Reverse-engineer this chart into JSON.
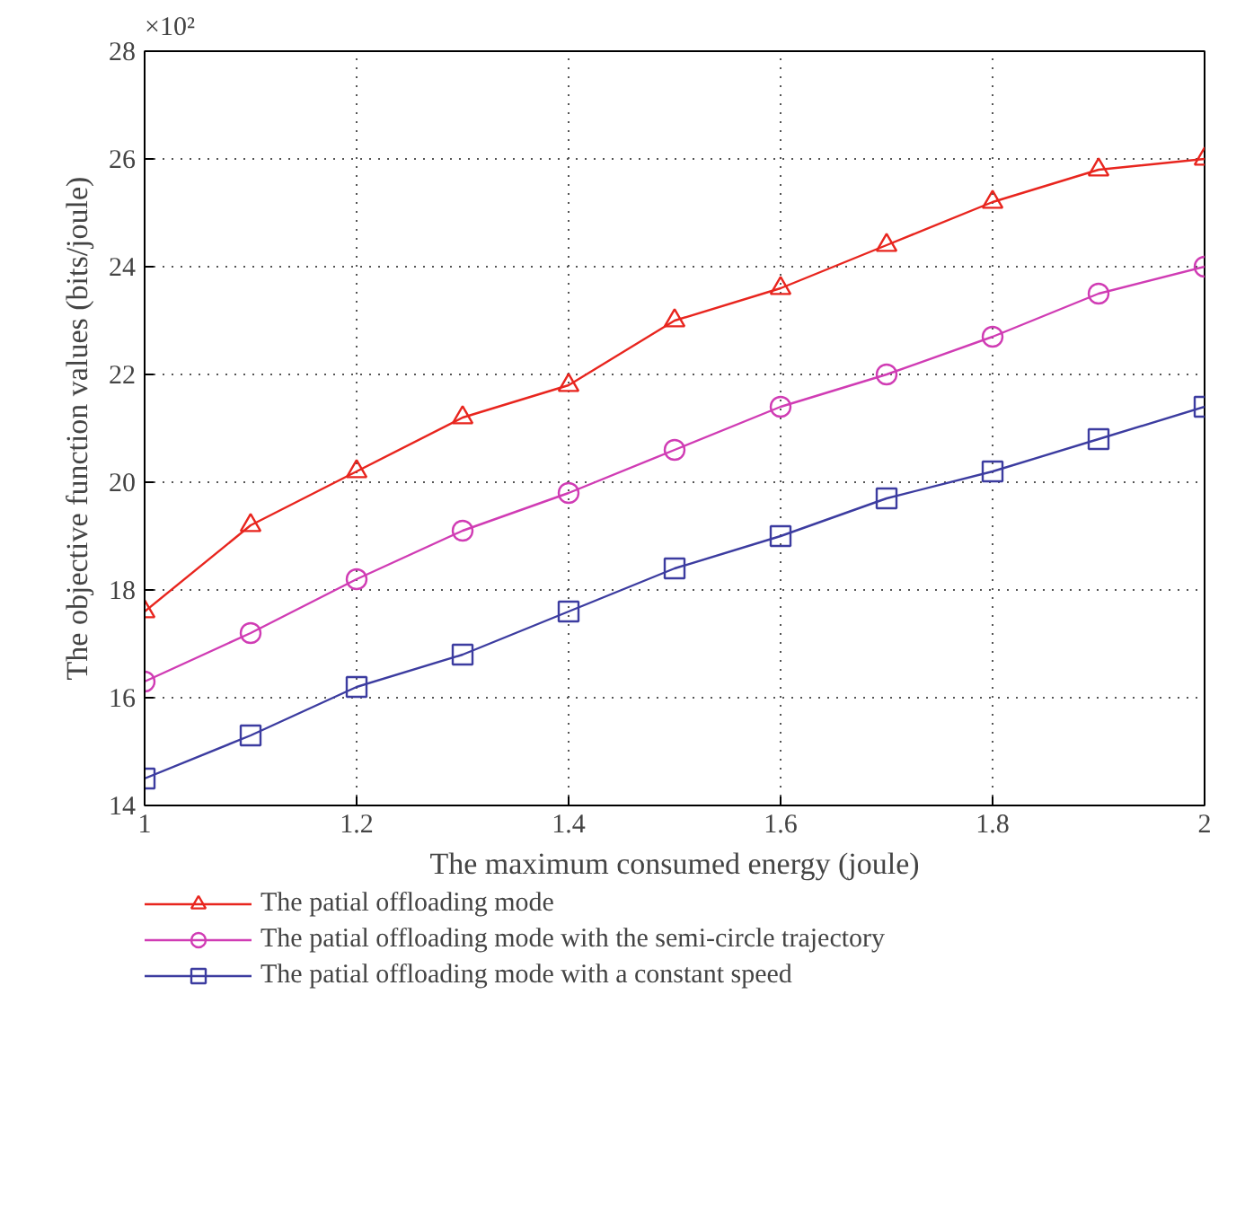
{
  "chart_data": {
    "type": "line",
    "xlabel": "The maximum consumed energy (joule)",
    "ylabel": "The objective function values (bits/joule)",
    "annotations": [
      "×10²"
    ],
    "x": [
      1,
      1.1,
      1.2,
      1.3,
      1.4,
      1.5,
      1.6,
      1.7,
      1.8,
      1.9,
      2
    ],
    "xlim": [
      1,
      2
    ],
    "xticks": [
      1,
      1.2,
      1.4,
      1.6,
      1.8,
      2
    ],
    "ylim": [
      14,
      28
    ],
    "yticks": [
      14,
      16,
      18,
      20,
      22,
      24,
      26,
      28
    ],
    "grid": true,
    "legend": "bottom",
    "line_style": "solid",
    "series": [
      {
        "name": "The patial offloading mode",
        "color": "#e8251e",
        "marker": "triangle",
        "values": [
          17.6,
          19.2,
          20.2,
          21.2,
          21.8,
          23.0,
          23.6,
          24.4,
          25.2,
          25.8,
          26.0
        ]
      },
      {
        "name": "The patial offloading mode with the semi-circle trajectory",
        "color": "#d03cb4",
        "marker": "circle",
        "values": [
          16.3,
          17.2,
          18.2,
          19.1,
          19.8,
          20.6,
          21.4,
          22.0,
          22.7,
          23.5,
          24.0
        ]
      },
      {
        "name": "The patial offloading mode with a constant speed",
        "color": "#3c3ca0",
        "marker": "square",
        "values": [
          14.5,
          15.3,
          16.2,
          16.8,
          17.6,
          18.4,
          19.0,
          19.7,
          20.2,
          20.8,
          21.4
        ]
      }
    ]
  }
}
